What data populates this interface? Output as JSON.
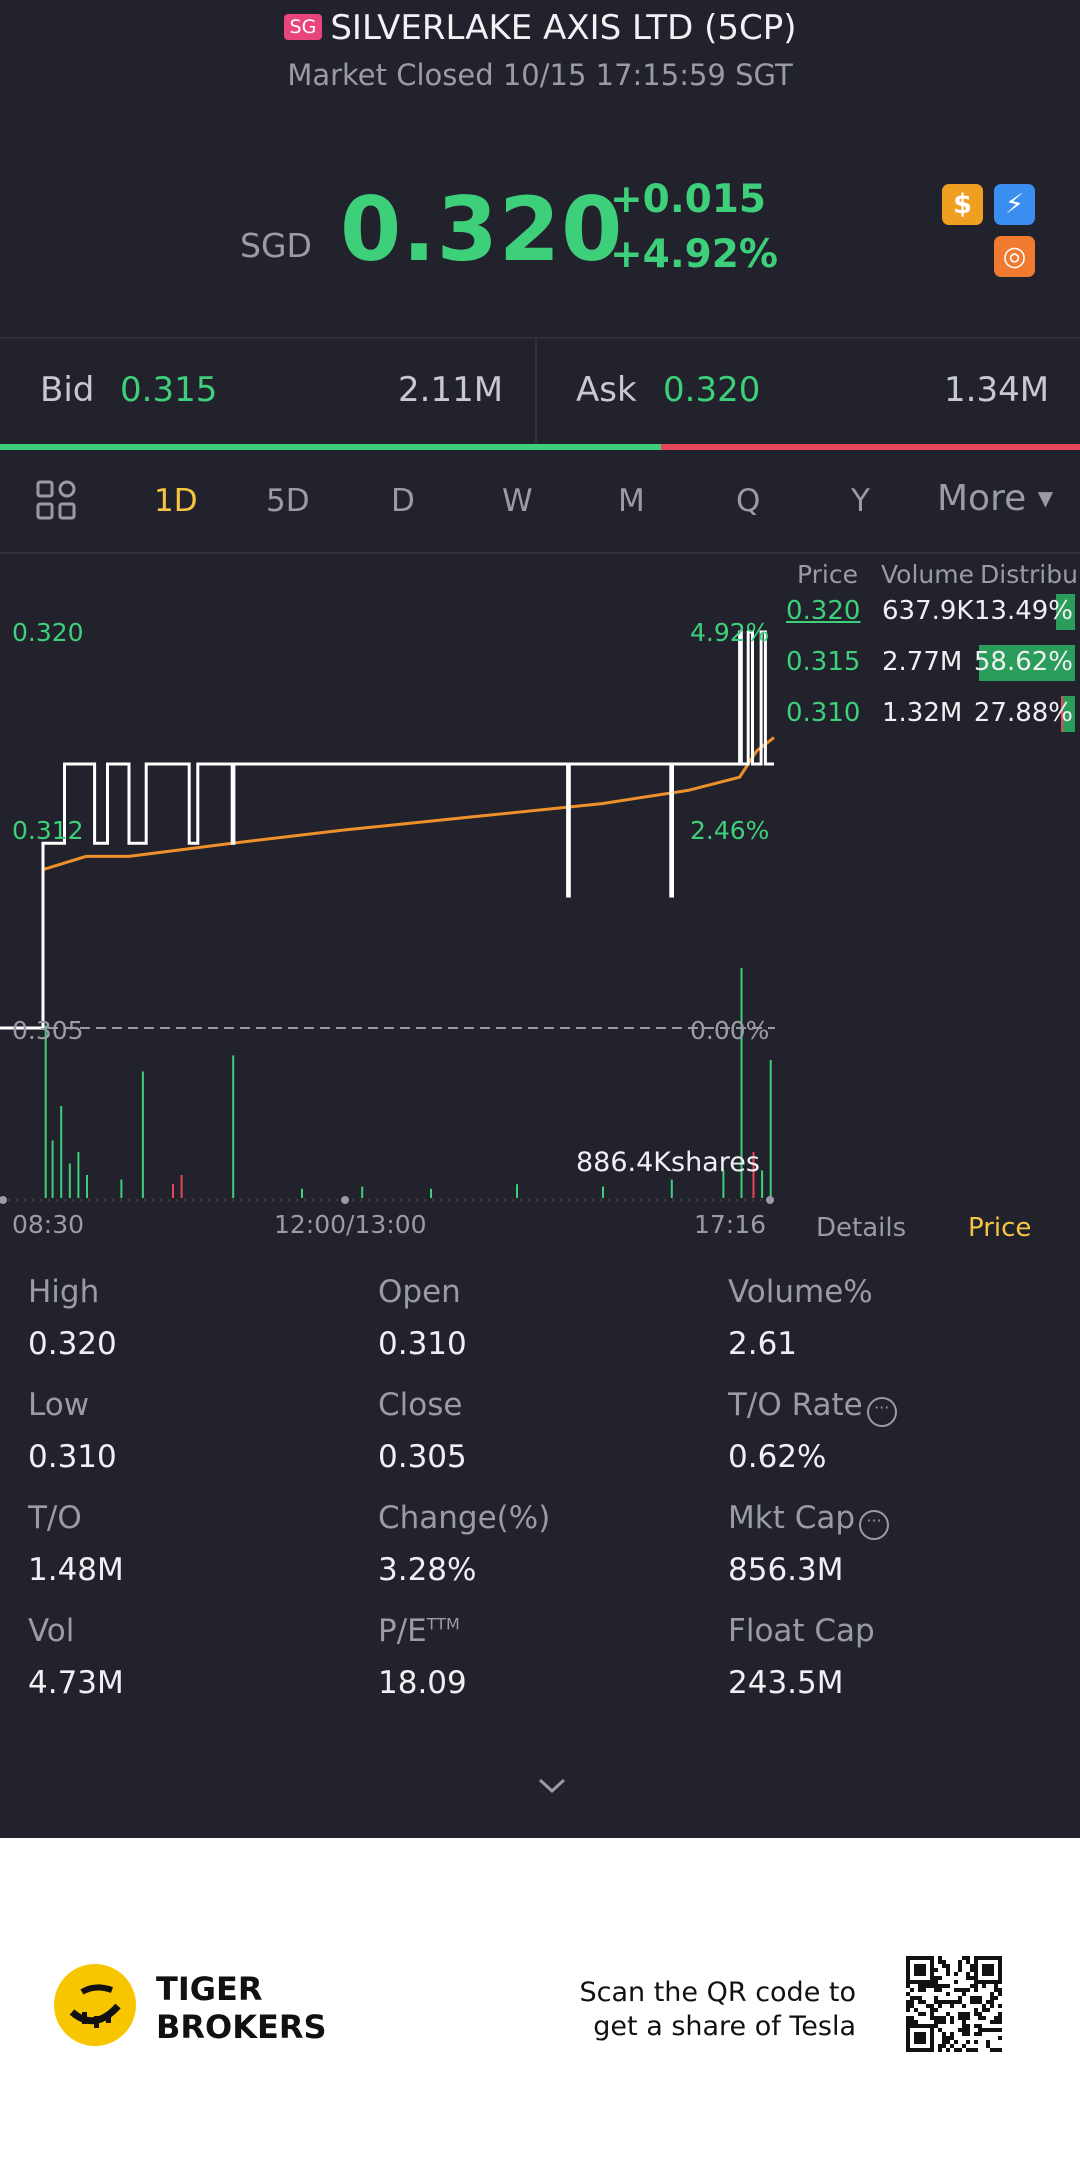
{
  "header": {
    "market_badge": "SG",
    "title": "SILVERLAKE AXIS LTD (5CP)",
    "status": "Market Closed 10/15 17:15:59 SGT"
  },
  "quote": {
    "currency": "SGD",
    "price": "0.320",
    "change": "+0.015",
    "change_pct": "+4.92%"
  },
  "badges": [
    "dollar-icon",
    "lightning-icon",
    "trend-icon"
  ],
  "orderbook": {
    "bid_label": "Bid",
    "bid_price": "0.315",
    "bid_volume": "2.11M",
    "ask_label": "Ask",
    "ask_price": "0.320",
    "ask_volume": "1.34M",
    "bid_fraction": 0.612
  },
  "tabs": {
    "items": [
      "1D",
      "5D",
      "D",
      "W",
      "M",
      "Q",
      "Y"
    ],
    "active": "1D",
    "more": "More"
  },
  "chart_data": {
    "type": "line",
    "y_ticks_left": [
      "0.320",
      "0.312",
      "0.305"
    ],
    "y_ticks_right": [
      "4.92%",
      "2.46%",
      "0.00%"
    ],
    "ylim": [
      0.305,
      0.32
    ],
    "x_ticks": [
      "08:30",
      "12:00/13:00",
      "17:16"
    ],
    "volume_label": "886.4Kshares",
    "series": [
      {
        "color": "#ffffff",
        "x": [
          0,
          0.05,
          0.05,
          0.058,
          0.058,
          0.075,
          0.075,
          0.11,
          0.11,
          0.125,
          0.125,
          0.15,
          0.15,
          0.17,
          0.17,
          0.22,
          0.22,
          0.23,
          0.23,
          0.27,
          0.27,
          0.272,
          0.272,
          0.66,
          0.66,
          0.662,
          0.662,
          0.78,
          0.78,
          0.782,
          0.782,
          0.86,
          0.86,
          0.862,
          0.862,
          0.87,
          0.87,
          0.875,
          0.875,
          0.885,
          0.885,
          0.89,
          0.89,
          0.9
        ],
        "values": [
          0.305,
          0.305,
          0.312,
          0.312,
          0.312,
          0.312,
          0.315,
          0.315,
          0.312,
          0.312,
          0.315,
          0.315,
          0.312,
          0.312,
          0.315,
          0.315,
          0.312,
          0.312,
          0.315,
          0.315,
          0.312,
          0.312,
          0.315,
          0.315,
          0.31,
          0.31,
          0.315,
          0.315,
          0.31,
          0.31,
          0.315,
          0.315,
          0.32,
          0.32,
          0.315,
          0.315,
          0.32,
          0.32,
          0.315,
          0.315,
          0.32,
          0.32,
          0.315,
          0.315
        ]
      },
      {
        "color": "#f0902a",
        "x": [
          0,
          0.05,
          0.05,
          0.1,
          0.15,
          0.27,
          0.4,
          0.55,
          0.7,
          0.8,
          0.86,
          0.88,
          0.9
        ],
        "values": [
          0.305,
          0.305,
          0.311,
          0.3115,
          0.3115,
          0.312,
          0.3125,
          0.313,
          0.3135,
          0.314,
          0.3145,
          0.3155,
          0.316
        ]
      }
    ],
    "volume_bars": [
      {
        "x": 0.052,
        "h": 0.75,
        "c": "#3ecf7b"
      },
      {
        "x": 0.06,
        "h": 0.25,
        "c": "#3ecf7b"
      },
      {
        "x": 0.07,
        "h": 0.4,
        "c": "#3ecf7b"
      },
      {
        "x": 0.08,
        "h": 0.15,
        "c": "#3ecf7b"
      },
      {
        "x": 0.09,
        "h": 0.2,
        "c": "#3ecf7b"
      },
      {
        "x": 0.1,
        "h": 0.1,
        "c": "#3ecf7b"
      },
      {
        "x": 0.14,
        "h": 0.08,
        "c": "#3ecf7b"
      },
      {
        "x": 0.165,
        "h": 0.55,
        "c": "#3ecf7b"
      },
      {
        "x": 0.2,
        "h": 0.06,
        "c": "#e8465a"
      },
      {
        "x": 0.21,
        "h": 0.1,
        "c": "#e8465a"
      },
      {
        "x": 0.27,
        "h": 0.62,
        "c": "#3ecf7b"
      },
      {
        "x": 0.35,
        "h": 0.04,
        "c": "#3ecf7b"
      },
      {
        "x": 0.42,
        "h": 0.05,
        "c": "#3ecf7b"
      },
      {
        "x": 0.5,
        "h": 0.04,
        "c": "#3ecf7b"
      },
      {
        "x": 0.6,
        "h": 0.06,
        "c": "#3ecf7b"
      },
      {
        "x": 0.7,
        "h": 0.05,
        "c": "#3ecf7b"
      },
      {
        "x": 0.78,
        "h": 0.08,
        "c": "#3ecf7b"
      },
      {
        "x": 0.84,
        "h": 0.12,
        "c": "#3ecf7b"
      },
      {
        "x": 0.861,
        "h": 1.0,
        "c": "#3ecf7b"
      },
      {
        "x": 0.875,
        "h": 0.2,
        "c": "#e8465a"
      },
      {
        "x": 0.885,
        "h": 0.12,
        "c": "#3ecf7b"
      },
      {
        "x": 0.895,
        "h": 0.6,
        "c": "#3ecf7b"
      }
    ]
  },
  "distribution": {
    "headers": [
      "Price",
      "Volume",
      "Distribu"
    ],
    "rows": [
      {
        "price": "0.320",
        "volume": "637.9K",
        "pct": "13.49%",
        "buy": 0.75,
        "sell": 0.25
      },
      {
        "price": "0.315",
        "volume": "2.77M",
        "pct": "58.62%",
        "buy": 1.0,
        "sell": 0.0
      },
      {
        "price": "0.310",
        "volume": "1.32M",
        "pct": "27.88%",
        "buy": 0.45,
        "sell": 0.55
      }
    ]
  },
  "subtabs": {
    "details": "Details",
    "price": "Price"
  },
  "stats": [
    {
      "label": "High",
      "value": "0.320"
    },
    {
      "label": "Open",
      "value": "0.310"
    },
    {
      "label": "Volume%",
      "value": "2.61"
    },
    {
      "label": "Low",
      "value": "0.310"
    },
    {
      "label": "Close",
      "value": "0.305"
    },
    {
      "label": "T/O Rate",
      "value": "0.62%"
    },
    {
      "label": "T/O",
      "value": "1.48M"
    },
    {
      "label": "Change(%)",
      "value": "3.28%"
    },
    {
      "label": "Mkt Cap",
      "value": "856.3M"
    },
    {
      "label": "Vol",
      "value": "4.73M"
    },
    {
      "label": "P/E",
      "value": "18.09"
    },
    {
      "label": "Float Cap",
      "value": "243.5M"
    }
  ],
  "pe_superscript": "TTM",
  "footer": {
    "brand_line1": "TIGER",
    "brand_line2": "BROKERS",
    "promo_line1": "Scan the QR code to",
    "promo_line2": "get a share of Tesla"
  }
}
